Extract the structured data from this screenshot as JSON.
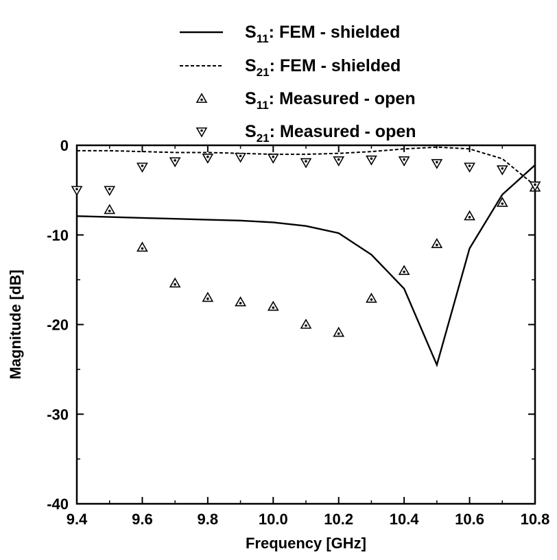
{
  "chart_data": {
    "type": "line",
    "title": "",
    "xlabel": "Frequency [GHz]",
    "ylabel": "Magnitude [dB]",
    "xlim": [
      9.4,
      10.8
    ],
    "ylim": [
      -40,
      0
    ],
    "x_ticks": [
      "9.4",
      "9.6",
      "9.8",
      "10.0",
      "10.2",
      "10.4",
      "10.6",
      "10.8"
    ],
    "y_ticks": [
      "0",
      "-10",
      "-20",
      "-30",
      "-40"
    ],
    "grid": false,
    "legend_position": "top",
    "series": [
      {
        "name": "S11: FEM - shielded",
        "name_main": "S",
        "name_sub": "11",
        "name_rest": ": FEM - shielded",
        "style": "solid-line",
        "x": [
          9.4,
          9.5,
          9.6,
          9.7,
          9.8,
          9.9,
          10.0,
          10.1,
          10.2,
          10.3,
          10.4,
          10.5,
          10.6,
          10.7,
          10.8
        ],
        "y": [
          -7.9,
          -8.0,
          -8.1,
          -8.2,
          -8.3,
          -8.4,
          -8.6,
          -9.0,
          -9.8,
          -12.2,
          -16.0,
          -24.5,
          -11.5,
          -5.5,
          -2.2
        ]
      },
      {
        "name": "S21: FEM - shielded",
        "name_main": "S",
        "name_sub": "21",
        "name_rest": ": FEM - shielded",
        "style": "dashed-line",
        "x": [
          9.4,
          9.5,
          9.6,
          9.7,
          9.8,
          9.9,
          10.0,
          10.1,
          10.2,
          10.3,
          10.4,
          10.5,
          10.6,
          10.7,
          10.8
        ],
        "y": [
          -0.6,
          -0.6,
          -0.7,
          -0.8,
          -0.8,
          -0.9,
          -1.0,
          -1.0,
          -0.9,
          -0.7,
          -0.4,
          -0.2,
          -0.4,
          -1.5,
          -4.5
        ]
      },
      {
        "name": "S11: Measured - open",
        "name_main": "S",
        "name_sub": "11",
        "name_rest": ": Measured - open",
        "style": "triangle-up-markers",
        "x": [
          9.5,
          9.6,
          9.7,
          9.8,
          9.9,
          10.0,
          10.1,
          10.2,
          10.3,
          10.4,
          10.5,
          10.6,
          10.7,
          10.8
        ],
        "y": [
          -7.2,
          -11.4,
          -15.4,
          -17.0,
          -17.5,
          -18.0,
          -20.0,
          -20.9,
          -17.1,
          -14.0,
          -11.0,
          -7.9,
          -6.4,
          -4.7
        ]
      },
      {
        "name": "S21: Measured - open",
        "name_main": "S",
        "name_sub": "21",
        "name_rest": ": Measured - open",
        "style": "triangle-down-markers",
        "x": [
          9.4,
          9.5,
          9.6,
          9.7,
          9.8,
          9.9,
          10.0,
          10.1,
          10.2,
          10.3,
          10.4,
          10.5,
          10.6,
          10.7,
          10.8
        ],
        "y": [
          -5.0,
          -5.0,
          -2.4,
          -1.8,
          -1.4,
          -1.3,
          -1.4,
          -1.9,
          -1.7,
          -1.6,
          -1.7,
          -2.0,
          -2.4,
          -2.7,
          -4.5
        ]
      }
    ]
  }
}
